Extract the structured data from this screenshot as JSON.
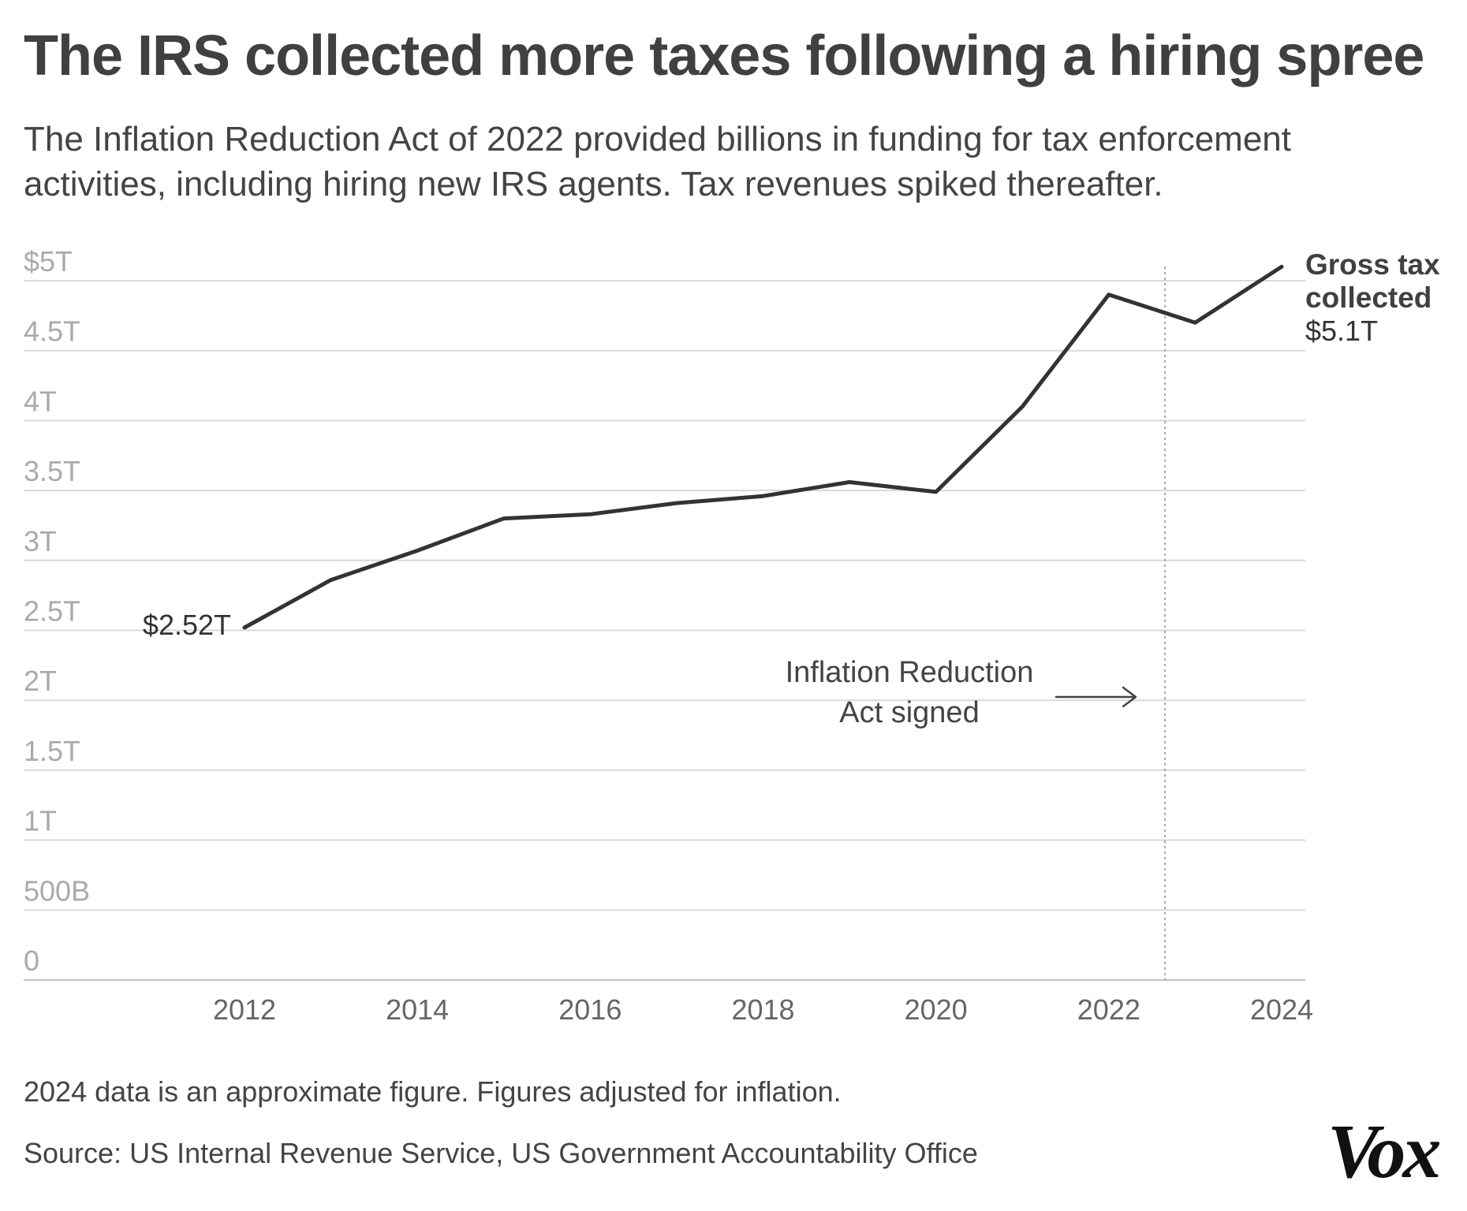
{
  "header": {
    "title": "The IRS collected more taxes following a hiring spree",
    "subtitle": "The Inflation Reduction Act of 2022 provided billions in funding for tax enforcement activities, including hiring new IRS agents. Tax revenues spiked thereafter."
  },
  "footer": {
    "note": "2024 data is an approximate figure. Figures adjusted for inflation.",
    "source": "Source: US Internal Revenue Service, US Government Accountability Office",
    "logo": "Vox"
  },
  "chart_data": {
    "type": "line",
    "title": "The IRS collected more taxes following a hiring spree",
    "xlabel": "",
    "ylabel": "",
    "xlim": [
      2010.5,
      2024.2
    ],
    "ylim": [
      0,
      5
    ],
    "grid": true,
    "y_ticks": [
      0,
      0.5,
      1,
      1.5,
      2,
      2.5,
      3,
      3.5,
      4,
      4.5,
      5
    ],
    "y_tick_labels": [
      "0",
      "500B",
      "1T",
      "1.5T",
      "2T",
      "2.5T",
      "3T",
      "3.5T",
      "4T",
      "4.5T",
      "$5T"
    ],
    "x_ticks": [
      2012,
      2014,
      2016,
      2018,
      2020,
      2022,
      2024
    ],
    "x_tick_labels": [
      "2012",
      "2014",
      "2016",
      "2018",
      "2020",
      "2022",
      "2024"
    ],
    "series": [
      {
        "name": "Gross tax collected",
        "x": [
          2012,
          2013,
          2014,
          2015,
          2016,
          2017,
          2018,
          2019,
          2020,
          2021,
          2022,
          2023,
          2024
        ],
        "values": [
          2.52,
          2.86,
          3.07,
          3.3,
          3.33,
          3.41,
          3.46,
          3.56,
          3.49,
          4.1,
          4.9,
          4.7,
          5.1
        ],
        "color": "#333333"
      }
    ],
    "annotations": {
      "start_label": "$2.52T",
      "end_label_name_line1": "Gross tax",
      "end_label_name_line2": "collected",
      "end_label_value": "$5.1T",
      "event_line_x": 2022.65,
      "event_label_line1": "Inflation Reduction",
      "event_label_line2": "Act signed"
    },
    "colors": {
      "line": "#333333",
      "grid": "#d9d9d9",
      "axis_label": "#aaaaaa",
      "x_tick_label": "#666666",
      "event_line": "#a6a6a6"
    }
  }
}
